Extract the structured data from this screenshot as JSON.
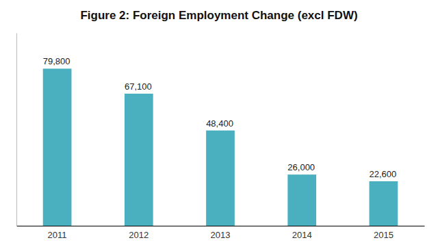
{
  "chart_data": {
    "type": "bar",
    "title": "Figure 2: Foreign Employment Change (excl FDW)",
    "categories": [
      "2011",
      "2012",
      "2013",
      "2014",
      "2015"
    ],
    "values": [
      79800,
      67100,
      48400,
      26000,
      22600
    ],
    "value_labels": [
      "79,800",
      "67,100",
      "48,400",
      "26,000",
      "22,600"
    ],
    "data_labels": true,
    "color": "#4AAFBE",
    "ylim": [
      0,
      98000
    ],
    "tick_labels": "x",
    "grid": false
  }
}
